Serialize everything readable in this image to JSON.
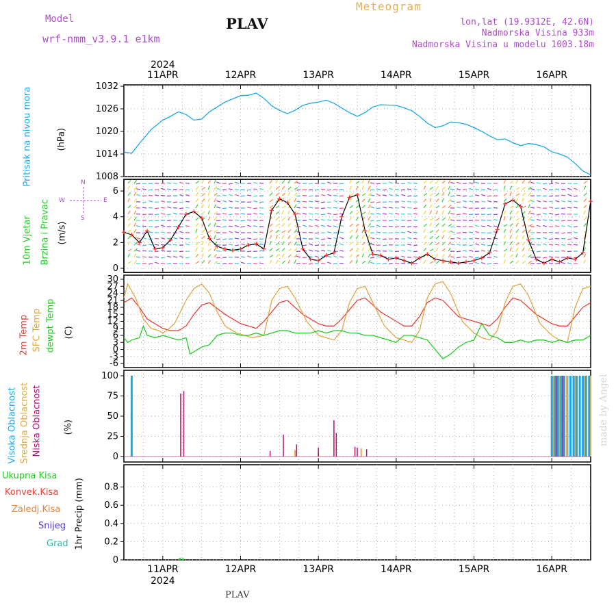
{
  "header": {
    "model_label": "Model",
    "model_name": "wrf-nmm_v3.9.1  e1km",
    "station": "PLAV",
    "title": "Meteogram",
    "lonlat": "lon,lat (19.9312E, 42.6N)",
    "elevation": "Nadmorska Visina 933m",
    "model_elevation": "Nadmorska Visina u modelu 1003.18m",
    "footer_station": "PLAV",
    "watermark": "made by Angel"
  },
  "colors": {
    "pressure": "#1aa7e8",
    "temp2m": "#e8403a",
    "sfc": "#e0a845",
    "dewpt": "#22cc22",
    "high_cloud": "#1aa7e8",
    "mid_cloud": "#e0a845",
    "low_cloud": "#b0106e",
    "wind_speed": "#000000",
    "wind_cross": "#ff2a2a",
    "header_purple": "#b04ad0",
    "title_gold": "#e0b050"
  },
  "chart_data": [
    {
      "type": "line",
      "panel": "pressure",
      "ylabel_lines": [
        "Pritisak na nivou mora",
        "(hPa)"
      ],
      "ylim": [
        1008,
        1032
      ],
      "yticks": [
        1008,
        1014,
        1020,
        1026,
        1032
      ],
      "x_axis": {
        "year": "2024",
        "dates": [
          "11APR",
          "12APR",
          "13APR",
          "14APR",
          "15APR",
          "16APR"
        ],
        "day_positions": [
          11,
          12,
          13,
          14,
          15,
          16
        ],
        "xlim": [
          10.5,
          16.5
        ]
      },
      "grid": true,
      "series": [
        {
          "x": [
            10.5,
            10.6,
            10.7,
            10.85,
            11.0,
            11.1,
            11.2,
            11.3,
            11.4,
            11.5,
            11.6,
            11.8,
            12.0,
            12.1,
            12.2,
            12.3,
            12.4,
            12.5,
            12.6,
            12.7,
            12.8,
            12.9,
            13.0,
            13.1,
            13.2,
            13.3,
            13.4,
            13.5,
            13.6,
            13.7,
            13.8,
            14.0,
            14.1,
            14.2,
            14.3,
            14.4,
            14.5,
            14.6,
            14.7,
            14.8,
            14.9,
            15.0,
            15.1,
            15.2,
            15.3,
            15.4,
            15.5,
            15.6,
            15.7,
            15.8,
            15.9,
            16.0,
            16.1,
            16.2,
            16.3,
            16.4,
            16.5
          ],
          "y": [
            1014.5,
            1014.2,
            1016.8,
            1020.5,
            1023.0,
            1024.0,
            1025.2,
            1024.5,
            1023.0,
            1023.3,
            1025.2,
            1027.8,
            1029.5,
            1029.6,
            1030.2,
            1028.8,
            1026.8,
            1025.6,
            1024.7,
            1025.6,
            1026.9,
            1027.5,
            1027.8,
            1028.3,
            1027.5,
            1026.2,
            1025.0,
            1024.0,
            1025.0,
            1026.5,
            1027.1,
            1026.9,
            1026.3,
            1025.5,
            1024.0,
            1022.2,
            1021.0,
            1021.5,
            1022.5,
            1022.3,
            1021.9,
            1021.0,
            1020.0,
            1018.8,
            1017.8,
            1018.0,
            1017.0,
            1016.2,
            1016.8,
            1016.5,
            1015.9,
            1014.6,
            1014.0,
            1013.2,
            1011.5,
            1009.5,
            1008.5
          ]
        }
      ]
    },
    {
      "type": "line",
      "panel": "wind",
      "ylabel_lines": [
        "10m Vjetar",
        "Brzina i Pravac",
        "(m/s)"
      ],
      "compass_labels": [
        "W",
        "S",
        "N",
        "E"
      ],
      "ylim": [
        0,
        6.8
      ],
      "yticks": [
        0,
        2,
        4,
        6
      ],
      "grid": true,
      "note": "Background filled with dense wind barbs colored by direction",
      "series": [
        {
          "name": "speed",
          "x": [
            10.5,
            10.6,
            10.7,
            10.8,
            10.9,
            11.0,
            11.1,
            11.2,
            11.3,
            11.4,
            11.5,
            11.6,
            11.7,
            11.8,
            11.9,
            12.0,
            12.1,
            12.2,
            12.3,
            12.4,
            12.5,
            12.6,
            12.7,
            12.8,
            12.9,
            13.0,
            13.1,
            13.2,
            13.3,
            13.4,
            13.5,
            13.6,
            13.7,
            13.8,
            13.9,
            14.0,
            14.1,
            14.2,
            14.3,
            14.4,
            14.5,
            14.6,
            14.7,
            14.8,
            14.9,
            15.0,
            15.1,
            15.2,
            15.3,
            15.4,
            15.5,
            15.6,
            15.7,
            15.8,
            15.9,
            16.0,
            16.1,
            16.2,
            16.3,
            16.4,
            16.5
          ],
          "y": [
            2.8,
            2.6,
            2.0,
            2.9,
            1.5,
            1.6,
            2.2,
            3.2,
            4.2,
            4.4,
            3.9,
            2.3,
            1.7,
            1.5,
            1.4,
            1.5,
            1.8,
            1.9,
            1.5,
            4.5,
            5.4,
            5.1,
            4.2,
            1.5,
            0.7,
            0.6,
            1.0,
            1.2,
            4.0,
            5.5,
            5.7,
            2.9,
            1.1,
            1.0,
            0.7,
            0.8,
            0.6,
            0.4,
            0.8,
            1.1,
            0.7,
            0.6,
            0.5,
            0.4,
            0.5,
            0.6,
            0.8,
            1.2,
            3.0,
            5.0,
            5.3,
            4.8,
            2.2,
            0.7,
            0.4,
            0.7,
            0.5,
            0.8,
            0.7,
            1.2,
            5.2
          ]
        }
      ]
    },
    {
      "type": "line",
      "panel": "temperature",
      "ylabel_lines": [
        "2m Temp",
        "SFC Temp",
        "dewpt Temp",
        "(C)"
      ],
      "ylim": [
        -6,
        30
      ],
      "yticks": [
        -6,
        -3,
        0,
        3,
        6,
        9,
        12,
        15,
        18,
        21,
        24,
        27,
        30
      ],
      "grid": true,
      "series": [
        {
          "name": "2m Temp",
          "x": [
            10.5,
            10.6,
            10.7,
            10.8,
            10.9,
            11.0,
            11.1,
            11.2,
            11.3,
            11.4,
            11.5,
            11.6,
            11.8,
            12.0,
            12.1,
            12.2,
            12.3,
            12.4,
            12.5,
            12.6,
            12.8,
            13.0,
            13.1,
            13.2,
            13.3,
            13.4,
            13.5,
            13.6,
            13.8,
            14.0,
            14.1,
            14.2,
            14.3,
            14.4,
            14.5,
            14.6,
            14.8,
            15.0,
            15.1,
            15.2,
            15.3,
            15.4,
            15.5,
            15.6,
            15.8,
            16.0,
            16.1,
            16.2,
            16.3,
            16.4,
            16.5
          ],
          "y": [
            20,
            22,
            18,
            13,
            11,
            9,
            8,
            8,
            10,
            15,
            19,
            20,
            15,
            11,
            10,
            9,
            12,
            16,
            20,
            21,
            15,
            11,
            10,
            10,
            13,
            17,
            21,
            22,
            16,
            12,
            10,
            10,
            14,
            20,
            22,
            21,
            14,
            12,
            11,
            10,
            13,
            18,
            22,
            21,
            15,
            11,
            10,
            10,
            14,
            18,
            20
          ]
        },
        {
          "name": "SFC Temp",
          "x": [
            10.5,
            10.55,
            10.65,
            10.75,
            10.85,
            10.95,
            11.0,
            11.05,
            11.15,
            11.3,
            11.4,
            11.5,
            11.6,
            11.7,
            11.8,
            11.95,
            12.05,
            12.15,
            12.3,
            12.4,
            12.5,
            12.6,
            12.7,
            12.85,
            13.0,
            13.1,
            13.2,
            13.3,
            13.4,
            13.5,
            13.6,
            13.7,
            13.85,
            14.0,
            14.1,
            14.2,
            14.3,
            14.4,
            14.5,
            14.6,
            14.7,
            14.85,
            15.0,
            15.1,
            15.2,
            15.3,
            15.4,
            15.5,
            15.6,
            15.7,
            15.85,
            16.0,
            16.1,
            16.2,
            16.3,
            16.4,
            16.5
          ],
          "y": [
            22,
            28,
            22,
            13,
            9,
            8,
            7,
            8,
            11,
            21,
            26,
            28,
            24,
            16,
            10,
            7,
            6,
            5,
            6,
            21,
            26,
            27,
            22,
            12,
            6,
            5,
            4,
            8,
            20,
            26,
            27,
            20,
            10,
            5,
            4,
            3,
            8,
            22,
            28,
            29,
            24,
            12,
            7,
            5,
            4,
            8,
            20,
            27,
            28,
            23,
            11,
            6,
            4,
            3,
            18,
            26,
            27
          ]
        },
        {
          "name": "dewpt Temp",
          "x": [
            10.5,
            10.55,
            10.6,
            10.7,
            10.75,
            10.8,
            10.9,
            11.0,
            11.1,
            11.2,
            11.3,
            11.35,
            11.4,
            11.5,
            11.6,
            11.7,
            11.8,
            11.9,
            12.0,
            12.1,
            12.2,
            12.3,
            12.4,
            12.5,
            12.6,
            12.7,
            12.8,
            12.9,
            13.0,
            13.1,
            13.2,
            13.3,
            13.4,
            13.5,
            13.6,
            13.7,
            13.8,
            13.9,
            14.0,
            14.1,
            14.2,
            14.3,
            14.4,
            14.5,
            14.6,
            14.7,
            14.8,
            14.9,
            15.0,
            15.1,
            15.2,
            15.3,
            15.4,
            15.5,
            15.6,
            15.7,
            15.8,
            15.9,
            16.0,
            16.1,
            16.2,
            16.3,
            16.4,
            16.5
          ],
          "y": [
            5,
            3,
            4,
            5,
            10,
            6,
            5,
            6,
            5,
            4,
            5,
            -2,
            -1,
            1,
            2,
            6,
            7,
            7,
            6,
            6,
            7,
            6,
            7,
            8,
            8,
            7,
            7,
            7,
            8,
            7,
            8,
            8,
            7,
            7,
            6,
            6,
            5,
            4,
            3,
            6,
            6,
            5,
            4,
            0,
            -4,
            -2,
            1,
            3,
            4,
            11,
            6,
            5,
            3,
            3,
            4,
            3,
            4,
            4,
            3,
            4,
            3,
            4,
            4,
            6
          ]
        }
      ]
    },
    {
      "type": "bar",
      "panel": "cloud",
      "ylabel_lines": [
        "Visoka Oblacnost",
        "Srednja Oblacnost",
        "Niska Oblacnost",
        "(%)"
      ],
      "ylim": [
        0,
        100
      ],
      "yticks": [
        0,
        25,
        50,
        75,
        100
      ],
      "grid": true,
      "series": [
        {
          "name": "Visoka Oblacnost",
          "x": [
            10.6,
            16.0,
            16.04,
            16.08,
            16.12,
            16.16,
            16.2,
            16.24,
            16.28,
            16.32,
            16.36,
            16.4,
            16.44,
            16.48
          ],
          "values": [
            100,
            100,
            100,
            100,
            100,
            100,
            100,
            100,
            100,
            100,
            100,
            100,
            100,
            100
          ]
        },
        {
          "name": "Srednja Oblacnost",
          "x": [
            12.7,
            13.0,
            13.55,
            16.02,
            16.1,
            16.2,
            16.3,
            16.42,
            16.5
          ],
          "values": [
            8,
            5,
            10,
            100,
            100,
            100,
            100,
            100,
            100
          ]
        },
        {
          "name": "Niska Oblacnost",
          "x": [
            11.23,
            11.27,
            12.38,
            12.55,
            12.72,
            13.0,
            13.2,
            13.23,
            13.47,
            13.5,
            13.62,
            16.06,
            16.14
          ],
          "values": [
            78,
            81,
            7,
            27,
            15,
            11,
            45,
            29,
            12,
            11,
            9,
            100,
            100
          ]
        }
      ]
    },
    {
      "type": "bar",
      "panel": "precip",
      "ylabel_lines": [
        "Ukupna Kisa",
        "Konvek.Kisa",
        "Zaledj.Kisa",
        "Snijeg",
        "Grad",
        "1hr Precip (mm)"
      ],
      "ylim": [
        0,
        1.0
      ],
      "yticks": [
        0,
        0.2,
        0.4,
        0.6,
        0.8
      ],
      "grid": true,
      "x_axis_bottom": {
        "dates": [
          "11APR",
          "12APR",
          "13APR",
          "14APR",
          "15APR",
          "16APR"
        ],
        "year": "2024"
      },
      "series": [
        {
          "name": "Ukupna Kisa",
          "x": [
            11.22,
            11.26
          ],
          "values": [
            0.02,
            0.015
          ]
        },
        {
          "name": "Konvek.Kisa",
          "x": [],
          "values": []
        },
        {
          "name": "Zaledj.Kisa",
          "x": [],
          "values": []
        },
        {
          "name": "Snijeg",
          "x": [],
          "values": []
        },
        {
          "name": "Grad",
          "x": [],
          "values": []
        }
      ]
    }
  ]
}
